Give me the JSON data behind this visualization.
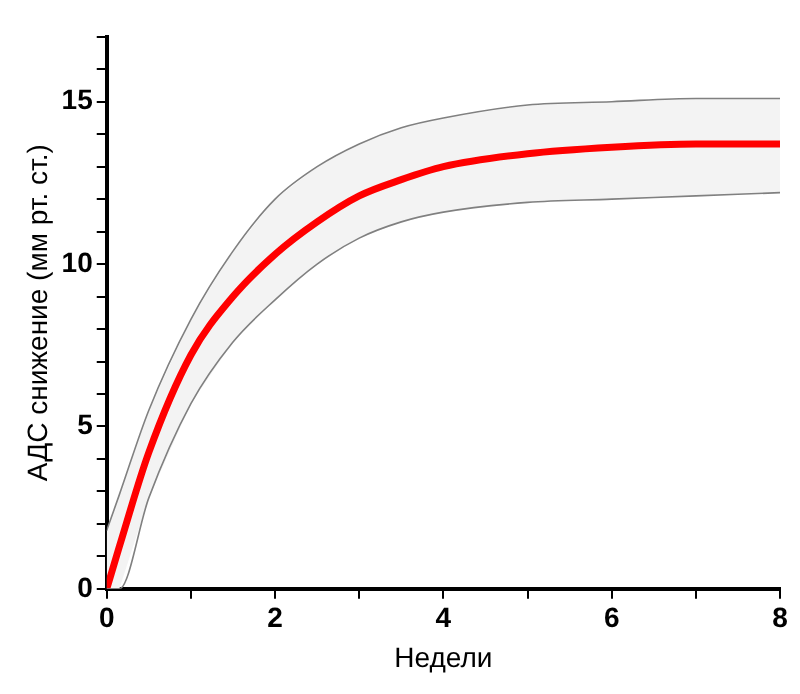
{
  "chart_data": {
    "type": "line",
    "xlabel": "Недели",
    "ylabel": "АДС снижение (мм рт. ст.)",
    "x": [
      0,
      0.15,
      0.5,
      1,
      1.5,
      2,
      2.5,
      3,
      3.5,
      4,
      5,
      6,
      7,
      8
    ],
    "series": [
      {
        "color": "#808080",
        "values": [
          1.8,
          2.9,
          5.5,
          8.3,
          10.4,
          12.0,
          13.0,
          13.7,
          14.2,
          14.5,
          14.9,
          15.0,
          15.1,
          15.1
        ]
      },
      {
        "color": "#808080",
        "values": [
          0,
          0,
          2.8,
          5.7,
          7.6,
          8.9,
          10.0,
          10.8,
          11.3,
          11.6,
          11.9,
          12.0,
          12.1,
          12.2
        ]
      },
      {
        "color": "#ff0000",
        "values": [
          0,
          1.3,
          4.2,
          7.2,
          9.0,
          10.3,
          11.3,
          12.1,
          12.6,
          13.0,
          13.4,
          13.6,
          13.7,
          13.7
        ],
        "lower": [
          0,
          0,
          2.8,
          5.7,
          7.6,
          8.9,
          10.0,
          10.8,
          11.3,
          11.6,
          11.9,
          12.0,
          12.1,
          12.2
        ],
        "upper": [
          1.8,
          2.9,
          5.5,
          8.3,
          10.4,
          12.0,
          13.0,
          13.7,
          14.2,
          14.5,
          14.9,
          15.0,
          15.1,
          15.1
        ]
      }
    ],
    "xlim": [
      0,
      8
    ],
    "xticks": [
      0,
      {
        "value": 1,
        "label": null
      },
      2,
      {
        "value": 3,
        "label": null
      },
      4,
      {
        "value": 5,
        "label": null
      },
      6,
      {
        "value": 7,
        "label": null
      },
      8
    ],
    "ylim": [
      0,
      17
    ],
    "yticks": [
      0,
      {
        "value": 1,
        "label": null
      },
      {
        "value": 2,
        "label": null
      },
      {
        "value": 3,
        "label": null
      },
      {
        "value": 4,
        "label": null
      },
      5,
      {
        "value": 6,
        "label": null
      },
      {
        "value": 7,
        "label": null
      },
      {
        "value": 8,
        "label": null
      },
      {
        "value": 9,
        "label": null
      },
      10,
      {
        "value": 11,
        "label": null
      },
      {
        "value": 12,
        "label": null
      },
      {
        "value": 13,
        "label": null
      },
      {
        "value": 14,
        "label": null
      },
      15,
      {
        "value": 16,
        "label": null
      },
      {
        "value": 17,
        "label": null
      }
    ],
    "grid": false,
    "legend": false,
    "marker": "none",
    "line_style": "solid"
  }
}
